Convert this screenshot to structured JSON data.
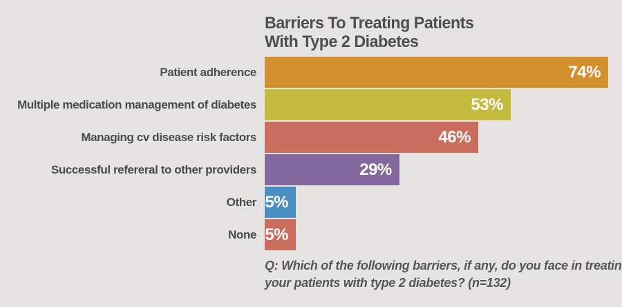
{
  "title": {
    "line1": "Barriers To Treating Patients",
    "line2": "With Type 2 Diabetes"
  },
  "footnote": {
    "line1": "Q: Which of the following barriers, if any, do you face in treating",
    "line2": "your patients with type 2 diabetes?  (n=132)"
  },
  "colors": {
    "background": "#e5e4e2",
    "title_text": "#4d4e53",
    "label_text": "#4a4b4d",
    "value_text": "#ffffff"
  },
  "chart_data": {
    "type": "bar",
    "orientation": "horizontal",
    "title": "Barriers To Treating Patients With Type 2 Diabetes",
    "unit": "%",
    "categories": [
      "Patient adherence",
      "Multiple medication management of diabetes",
      "Managing cv disease risk factors",
      "Successful refereral to other providers",
      "Other",
      "None"
    ],
    "values": [
      74,
      53,
      46,
      29,
      5,
      5
    ],
    "value_labels": [
      "74%",
      "53%",
      "46%",
      "29%",
      "5%",
      "5%"
    ],
    "bar_colors": [
      "#d3902f",
      "#c4ba3e",
      "#ca6c5e",
      "#84699f",
      "#4a8fc2",
      "#ca6c5e"
    ],
    "xlim": [
      0,
      74
    ],
    "grid": false,
    "legend": false,
    "value_labels_position": "inside-end"
  }
}
